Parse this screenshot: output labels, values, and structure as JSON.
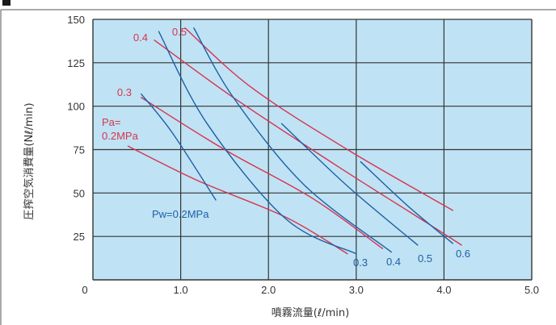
{
  "header": {
    "title_text": "",
    "marker_color": "#1a1a1a"
  },
  "chart_data": {
    "type": "line",
    "xlabel": "噴霧流量(ℓ/min)",
    "ylabel": "圧搾空気消費量(Nℓ/min)",
    "xlim": [
      0,
      5.0
    ],
    "ylim": [
      0,
      150
    ],
    "x_ticks": [
      "0",
      "1.0",
      "2.0",
      "3.0",
      "4.0",
      "5.0"
    ],
    "y_ticks": [
      "25",
      "50",
      "75",
      "100",
      "125",
      "150"
    ],
    "grid": true,
    "plot_background": "#bfe3f4",
    "grid_color": "#333333",
    "series": [
      {
        "name": "Pa=0.2MPa",
        "group": "Pa",
        "label_text": "Pa=\n0.2MPa",
        "color": "#d8334f",
        "points": [
          [
            0.4,
            77
          ],
          [
            1.2,
            57
          ],
          [
            2.2,
            36
          ],
          [
            2.9,
            15
          ]
        ]
      },
      {
        "name": "0.3",
        "group": "Pa",
        "label_text": "0.3",
        "color": "#d8334f",
        "points": [
          [
            0.55,
            105
          ],
          [
            1.5,
            75
          ],
          [
            2.5,
            47
          ],
          [
            3.3,
            18
          ]
        ]
      },
      {
        "name": "0.4",
        "group": "Pa",
        "label_text": "0.4",
        "color": "#d8334f",
        "points": [
          [
            0.7,
            138
          ],
          [
            1.6,
            105
          ],
          [
            2.8,
            65
          ],
          [
            3.8,
            33
          ],
          [
            4.2,
            20
          ]
        ]
      },
      {
        "name": "0.5",
        "group": "Pa",
        "label_text": "0.5",
        "color": "#d8334f",
        "points": [
          [
            1.05,
            145
          ],
          [
            1.8,
            111
          ],
          [
            2.9,
            75
          ],
          [
            4.1,
            40
          ]
        ]
      },
      {
        "name": "Pw=0.2MPa",
        "group": "Pw",
        "label_text": "Pw=0.2MPa",
        "color": "#1f5fa6",
        "points": [
          [
            0.55,
            107
          ],
          [
            0.9,
            85
          ],
          [
            1.4,
            46
          ]
        ]
      },
      {
        "name": "0.3",
        "group": "Pw",
        "label_text": "0.3",
        "color": "#1f5fa6",
        "points": [
          [
            0.75,
            143
          ],
          [
            1.3,
            90
          ],
          [
            2.2,
            35
          ],
          [
            3.0,
            15
          ]
        ]
      },
      {
        "name": "0.4",
        "group": "Pw",
        "label_text": "0.4",
        "color": "#1f5fa6",
        "points": [
          [
            1.15,
            145
          ],
          [
            1.6,
            105
          ],
          [
            2.4,
            55
          ],
          [
            3.4,
            16
          ]
        ]
      },
      {
        "name": "0.5",
        "group": "Pw",
        "label_text": "0.5",
        "color": "#1f5fa6",
        "points": [
          [
            2.15,
            90
          ],
          [
            2.9,
            54
          ],
          [
            3.7,
            20
          ]
        ]
      },
      {
        "name": "0.6",
        "group": "Pw",
        "label_text": "0.6",
        "color": "#1f5fa6",
        "points": [
          [
            3.05,
            68
          ],
          [
            3.6,
            42
          ],
          [
            4.1,
            21
          ]
        ]
      }
    ]
  }
}
